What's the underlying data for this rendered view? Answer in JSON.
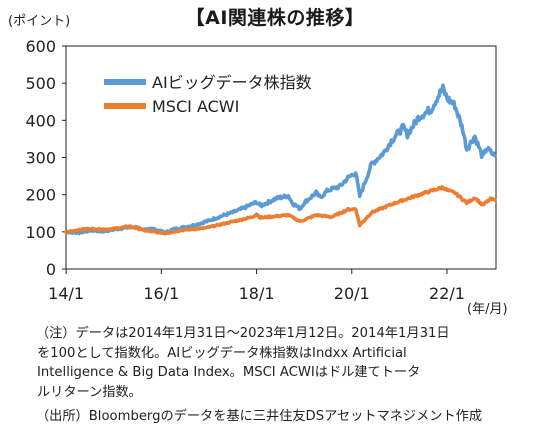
{
  "title": "【AI関連株の推移】",
  "chart_data": {
    "type": "line",
    "y_unit_label": "(ポイント)",
    "x_unit_label": "(年/月)",
    "ylim": [
      0,
      600
    ],
    "yticks": [
      0,
      100,
      200,
      300,
      400,
      500,
      600
    ],
    "xlim": [
      "2014-01-31",
      "2023-01-12"
    ],
    "xticks": [
      {
        "date": "2014-01",
        "label": "14/1"
      },
      {
        "date": "2016-01",
        "label": "16/1"
      },
      {
        "date": "2018-01",
        "label": "18/1"
      },
      {
        "date": "2020-01",
        "label": "20/1"
      },
      {
        "date": "2022-01",
        "label": "22/1"
      }
    ],
    "grid": false,
    "legend_position": "top-left",
    "series": [
      {
        "name": "AIビッグデータ株指数",
        "color": "#5b9bd5",
        "points": [
          [
            "2014-01",
            100
          ],
          [
            "2014-04",
            97
          ],
          [
            "2014-07",
            104
          ],
          [
            "2014-10",
            101
          ],
          [
            "2015-01",
            106
          ],
          [
            "2015-04",
            111
          ],
          [
            "2015-07",
            113
          ],
          [
            "2015-08",
            104
          ],
          [
            "2015-10",
            110
          ],
          [
            "2016-01",
            101
          ],
          [
            "2016-02",
            98
          ],
          [
            "2016-04",
            107
          ],
          [
            "2016-07",
            113
          ],
          [
            "2016-10",
            120
          ],
          [
            "2017-01",
            130
          ],
          [
            "2017-04",
            142
          ],
          [
            "2017-07",
            152
          ],
          [
            "2017-10",
            165
          ],
          [
            "2018-01",
            180
          ],
          [
            "2018-02",
            170
          ],
          [
            "2018-06",
            190
          ],
          [
            "2018-09",
            197
          ],
          [
            "2018-10",
            178
          ],
          [
            "2018-12",
            162
          ],
          [
            "2019-01",
            178
          ],
          [
            "2019-04",
            205
          ],
          [
            "2019-05",
            192
          ],
          [
            "2019-07",
            212
          ],
          [
            "2019-10",
            222
          ],
          [
            "2019-12",
            245
          ],
          [
            "2020-02",
            260
          ],
          [
            "2020-03",
            196
          ],
          [
            "2020-06",
            282
          ],
          [
            "2020-09",
            312
          ],
          [
            "2020-11",
            345
          ],
          [
            "2021-02",
            382
          ],
          [
            "2021-03",
            362
          ],
          [
            "2021-06",
            410
          ],
          [
            "2021-09",
            430
          ],
          [
            "2021-11",
            470
          ],
          [
            "2021-12",
            485
          ],
          [
            "2022-01",
            460
          ],
          [
            "2022-03",
            440
          ],
          [
            "2022-05",
            375
          ],
          [
            "2022-06",
            322
          ],
          [
            "2022-08",
            358
          ],
          [
            "2022-10",
            300
          ],
          [
            "2022-11",
            325
          ],
          [
            "2023-01",
            305
          ]
        ]
      },
      {
        "name": "MSCI ACWI",
        "color": "#ed7d31",
        "points": [
          [
            "2014-01",
            100
          ],
          [
            "2014-06",
            108
          ],
          [
            "2014-12",
            107
          ],
          [
            "2015-05",
            115
          ],
          [
            "2015-09",
            103
          ],
          [
            "2016-02",
            96
          ],
          [
            "2016-06",
            104
          ],
          [
            "2016-12",
            110
          ],
          [
            "2017-06",
            125
          ],
          [
            "2017-12",
            140
          ],
          [
            "2018-01",
            148
          ],
          [
            "2018-02",
            138
          ],
          [
            "2018-09",
            145
          ],
          [
            "2018-12",
            128
          ],
          [
            "2019-04",
            145
          ],
          [
            "2019-08",
            140
          ],
          [
            "2019-12",
            160
          ],
          [
            "2020-02",
            162
          ],
          [
            "2020-03",
            118
          ],
          [
            "2020-06",
            152
          ],
          [
            "2020-12",
            178
          ],
          [
            "2021-06",
            200
          ],
          [
            "2021-12",
            220
          ],
          [
            "2022-01",
            212
          ],
          [
            "2022-03",
            205
          ],
          [
            "2022-06",
            178
          ],
          [
            "2022-08",
            192
          ],
          [
            "2022-10",
            172
          ],
          [
            "2022-12",
            188
          ],
          [
            "2023-01",
            186
          ]
        ]
      }
    ]
  },
  "notes": [
    "（注）データは2014年1月31日～2023年1月12日。2014年1月31日",
    "を100として指数化。AIビッグデータ株指数はIndxx Artificial",
    "Intelligence & Big Data Index。MSCI ACWIはドル建てトータ",
    "ルリターン指数。"
  ],
  "source": "（出所）Bloombergのデータを基に三井住友DSアセットマネジメント作成"
}
